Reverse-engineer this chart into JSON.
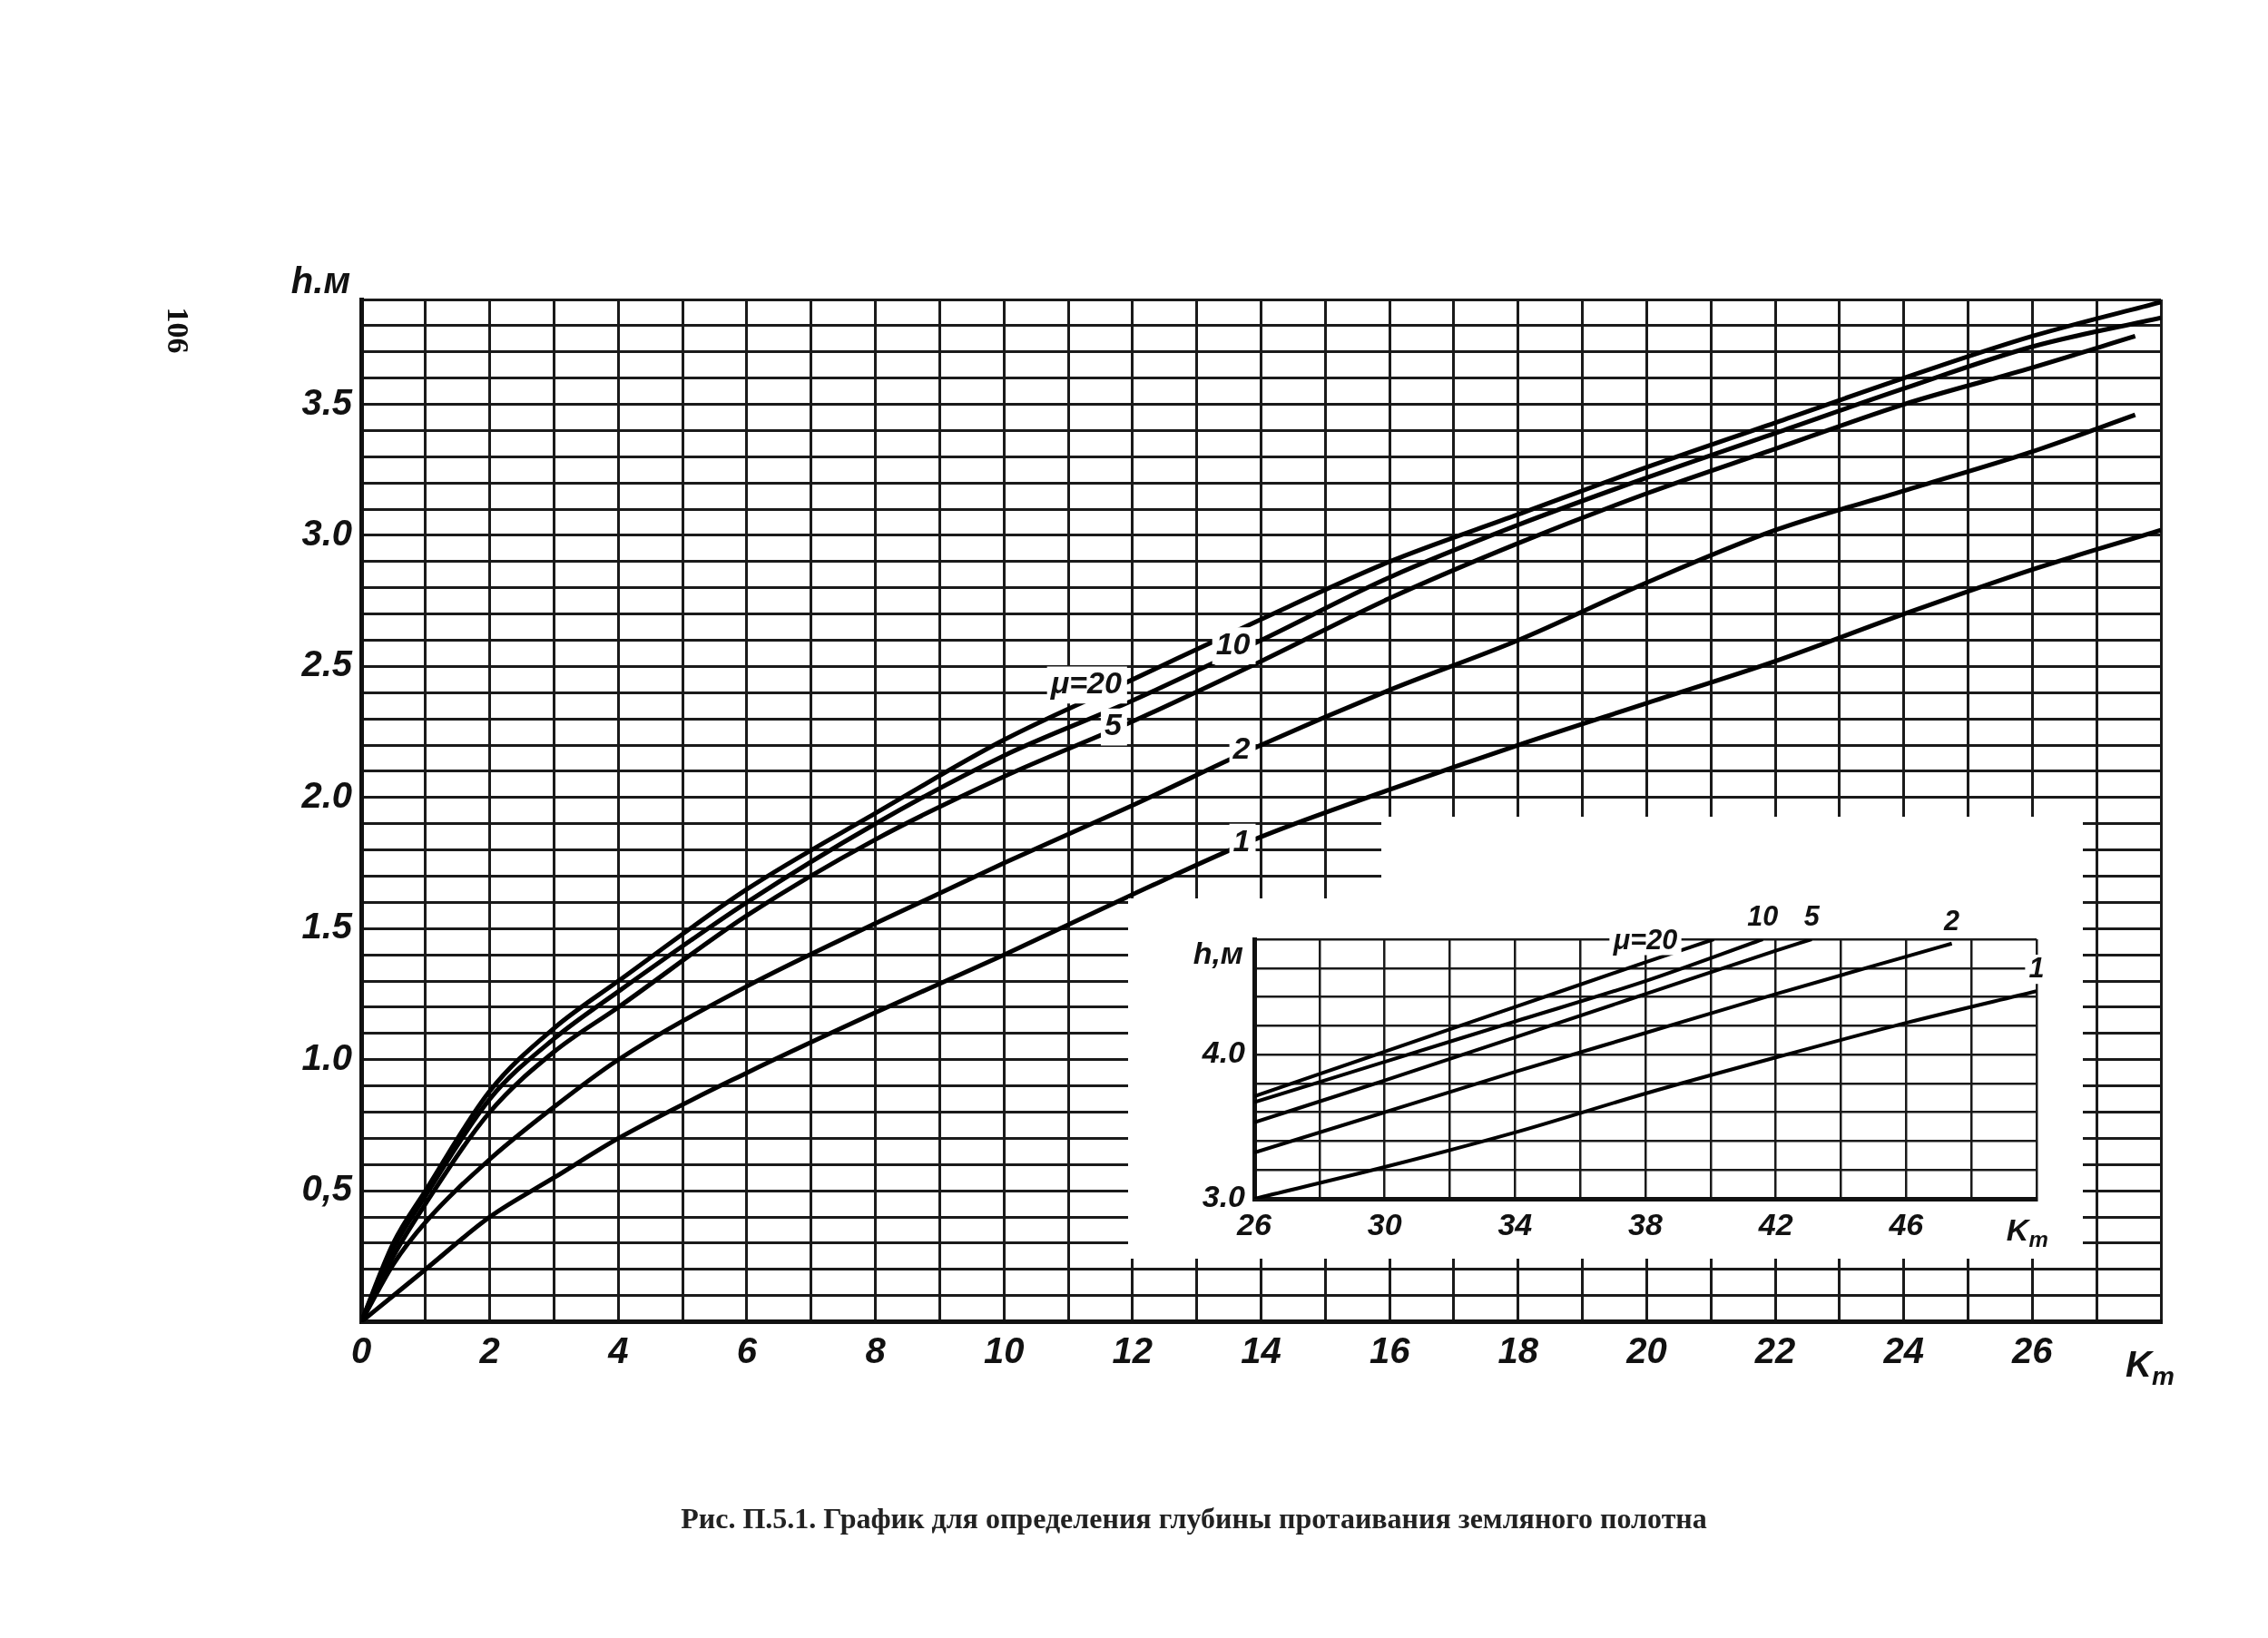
{
  "chart_data": [
    {
      "type": "line",
      "title": "Рис. П.5.1. График для определения глубины протаивания земляного полотна",
      "xlabel": "K$_{т}$",
      "ylabel": "h.м",
      "grid": true,
      "legend": false,
      "marker": "none",
      "line_style": "solid",
      "xlim": [
        0,
        28
      ],
      "ylim": [
        0,
        3.9
      ],
      "xticks": [
        0,
        {
          "value": 1,
          "label": null
        },
        2,
        {
          "value": 3,
          "label": null
        },
        4,
        {
          "value": 5,
          "label": null
        },
        6,
        {
          "value": 7,
          "label": null
        },
        8,
        {
          "value": 9,
          "label": null
        },
        10,
        {
          "value": 11,
          "label": null
        },
        12,
        {
          "value": 13,
          "label": null
        },
        14,
        {
          "value": 15,
          "label": null
        },
        16,
        {
          "value": 17,
          "label": null
        },
        18,
        {
          "value": 19,
          "label": null
        },
        20,
        {
          "value": 21,
          "label": null
        },
        22,
        {
          "value": 23,
          "label": null
        },
        24,
        {
          "value": 25,
          "label": null
        },
        26,
        {
          "value": 27,
          "label": null
        },
        {
          "value": 28,
          "label": null
        }
      ],
      "yticks": [
        {
          "value": 0,
          "label": null
        },
        {
          "value": 0.1,
          "label": null
        },
        {
          "value": 0.2,
          "label": null
        },
        {
          "value": 0.3,
          "label": null
        },
        {
          "value": 0.4,
          "label": null
        },
        {
          "value": 0.5,
          "label": "0,5"
        },
        {
          "value": 0.6,
          "label": null
        },
        {
          "value": 0.7,
          "label": null
        },
        {
          "value": 0.8,
          "label": null
        },
        {
          "value": 0.9,
          "label": null
        },
        {
          "value": 1.0,
          "label": "1.0"
        },
        {
          "value": 1.1,
          "label": null
        },
        {
          "value": 1.2,
          "label": null
        },
        {
          "value": 1.3,
          "label": null
        },
        {
          "value": 1.4,
          "label": null
        },
        {
          "value": 1.5,
          "label": "1.5"
        },
        {
          "value": 1.6,
          "label": null
        },
        {
          "value": 1.7,
          "label": null
        },
        {
          "value": 1.8,
          "label": null
        },
        {
          "value": 1.9,
          "label": null
        },
        {
          "value": 2.0,
          "label": "2.0"
        },
        {
          "value": 2.1,
          "label": null
        },
        {
          "value": 2.2,
          "label": null
        },
        {
          "value": 2.3,
          "label": null
        },
        {
          "value": 2.4,
          "label": null
        },
        {
          "value": 2.5,
          "label": "2.5"
        },
        {
          "value": 2.6,
          "label": null
        },
        {
          "value": 2.7,
          "label": null
        },
        {
          "value": 2.8,
          "label": null
        },
        {
          "value": 2.9,
          "label": null
        },
        {
          "value": 3.0,
          "label": "3.0"
        },
        {
          "value": 3.1,
          "label": null
        },
        {
          "value": 3.2,
          "label": null
        },
        {
          "value": 3.3,
          "label": null
        },
        {
          "value": 3.4,
          "label": null
        },
        {
          "value": 3.5,
          "label": "3.5"
        },
        {
          "value": 3.6,
          "label": null
        },
        {
          "value": 3.7,
          "label": null
        },
        {
          "value": 3.8,
          "label": null
        },
        {
          "value": 3.9,
          "label": null
        }
      ],
      "series": [
        {
          "color": "#000000",
          "x": [
            0,
            0.5,
            1,
            2,
            3,
            4,
            6,
            8,
            10,
            12,
            14,
            16,
            18,
            20,
            22,
            24,
            26,
            28
          ],
          "values": [
            0,
            0.3,
            0.5,
            0.88,
            1.12,
            1.3,
            1.65,
            1.94,
            2.22,
            2.45,
            2.68,
            2.9,
            3.08,
            3.26,
            3.43,
            3.6,
            3.76,
            3.89
          ]
        },
        {
          "color": "#000000",
          "x": [
            0,
            0.5,
            1,
            2,
            3,
            4,
            6,
            8,
            10,
            12,
            14,
            16,
            18,
            20,
            22,
            24,
            26,
            28
          ],
          "values": [
            0,
            0.28,
            0.48,
            0.85,
            1.08,
            1.26,
            1.6,
            1.9,
            2.16,
            2.37,
            2.6,
            2.84,
            3.04,
            3.22,
            3.39,
            3.56,
            3.72,
            3.83
          ]
        },
        {
          "color": "#000000",
          "x": [
            0,
            0.5,
            1,
            2,
            3,
            4,
            6,
            8,
            10,
            12,
            14,
            16,
            18,
            20,
            22,
            24,
            26,
            27.6
          ],
          "values": [
            0,
            0.25,
            0.45,
            0.8,
            1.03,
            1.2,
            1.55,
            1.84,
            2.08,
            2.29,
            2.52,
            2.76,
            2.97,
            3.16,
            3.33,
            3.5,
            3.64,
            3.76
          ]
        },
        {
          "color": "#000000",
          "x": [
            0,
            0.5,
            1,
            2,
            3,
            4,
            6,
            8,
            10,
            12,
            14,
            16,
            18,
            20,
            22,
            24,
            26,
            27.6
          ],
          "values": [
            0,
            0.22,
            0.38,
            0.62,
            0.82,
            1.0,
            1.28,
            1.52,
            1.75,
            1.97,
            2.2,
            2.41,
            2.6,
            2.82,
            3.02,
            3.17,
            3.32,
            3.46
          ]
        },
        {
          "color": "#000000",
          "x": [
            0,
            0.5,
            1,
            2,
            3,
            4,
            6,
            8,
            10,
            12,
            14,
            16,
            18,
            20,
            22,
            24,
            26,
            28
          ],
          "values": [
            0,
            0.1,
            0.2,
            0.4,
            0.55,
            0.7,
            0.95,
            1.18,
            1.4,
            1.63,
            1.85,
            2.03,
            2.2,
            2.36,
            2.52,
            2.7,
            2.87,
            3.02
          ]
        }
      ],
      "annotations": [
        "106",
        {
          "text": "μ=20",
          "x": 12,
          "y": 2.45
        },
        {
          "text": "10",
          "x": 14,
          "y": 2.6
        },
        {
          "text": "5",
          "x": 12,
          "y": 2.29
        },
        {
          "text": "2",
          "x": 14,
          "y": 2.2
        },
        {
          "text": "1",
          "x": 14,
          "y": 1.85
        }
      ]
    },
    {
      "type": "line",
      "xlabel": "K$_{т}$",
      "ylabel": "h,м",
      "grid": true,
      "legend": false,
      "marker": "none",
      "line_style": "solid",
      "xlim": [
        26,
        50
      ],
      "ylim": [
        3.0,
        4.8
      ],
      "xticks": [
        26,
        {
          "value": 28,
          "label": null
        },
        30,
        {
          "value": 32,
          "label": null
        },
        34,
        {
          "value": 36,
          "label": null
        },
        38,
        {
          "value": 40,
          "label": null
        },
        42,
        {
          "value": 44,
          "label": null
        },
        46,
        {
          "value": 48,
          "label": null
        },
        {
          "value": 50,
          "label": null
        }
      ],
      "yticks": [
        {
          "value": 3.0,
          "label": "3.0"
        },
        {
          "value": 3.2,
          "label": null
        },
        {
          "value": 3.4,
          "label": null
        },
        {
          "value": 3.6,
          "label": null
        },
        {
          "value": 3.8,
          "label": null
        },
        {
          "value": 4.0,
          "label": "4.0"
        },
        {
          "value": 4.2,
          "label": null
        },
        {
          "value": 4.4,
          "label": null
        },
        {
          "value": 4.6,
          "label": null
        },
        {
          "value": 4.8,
          "label": null
        }
      ],
      "series": [
        {
          "color": "#000000",
          "x": [
            26,
            30,
            34,
            38,
            40.1
          ],
          "values": [
            3.71,
            4.02,
            4.33,
            4.64,
            4.8
          ]
        },
        {
          "color": "#000000",
          "x": [
            26,
            30,
            34,
            38,
            41.6
          ],
          "values": [
            3.67,
            3.95,
            4.23,
            4.51,
            4.8
          ]
        },
        {
          "color": "#000000",
          "x": [
            26,
            30,
            34,
            38,
            42,
            43.1
          ],
          "values": [
            3.53,
            3.82,
            4.12,
            4.42,
            4.72,
            4.8
          ]
        },
        {
          "color": "#000000",
          "x": [
            26,
            30,
            34,
            38,
            42,
            46,
            47.4
          ],
          "values": [
            3.32,
            3.6,
            3.88,
            4.15,
            4.42,
            4.68,
            4.77
          ]
        },
        {
          "color": "#000000",
          "x": [
            26,
            30,
            34,
            38,
            42,
            46,
            50
          ],
          "values": [
            3.0,
            3.22,
            3.46,
            3.73,
            3.98,
            4.22,
            4.44
          ]
        }
      ],
      "annotations": [
        {
          "text": "μ=20",
          "x": 38,
          "y": 4.64
        },
        {
          "text": "10",
          "x": 41.6,
          "y": 4.8
        },
        {
          "text": "5",
          "x": 43.1,
          "y": 4.8
        },
        {
          "text": "2",
          "x": 47.4,
          "y": 4.77
        },
        {
          "text": "1",
          "x": 50,
          "y": 4.44
        }
      ]
    }
  ]
}
